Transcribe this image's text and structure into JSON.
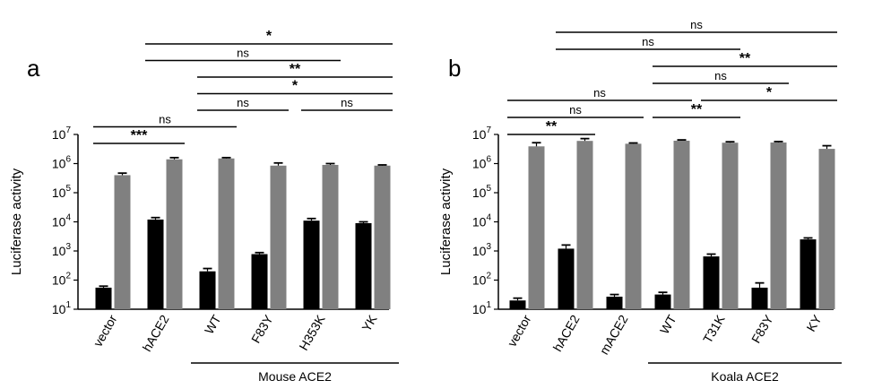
{
  "chart_data": [
    {
      "type": "bar",
      "panel_label": "a",
      "ylabel": "Luciferase activity",
      "yscale": "log",
      "ylim": [
        10,
        10000000
      ],
      "yticks": [
        {
          "base": "10",
          "exp": "1"
        },
        {
          "base": "10",
          "exp": "2"
        },
        {
          "base": "10",
          "exp": "3"
        },
        {
          "base": "10",
          "exp": "4"
        },
        {
          "base": "10",
          "exp": "5"
        },
        {
          "base": "10",
          "exp": "6"
        },
        {
          "base": "10",
          "exp": "7"
        }
      ],
      "categories": [
        "vector",
        "hACE2",
        "WT",
        "F83Y",
        "H353K",
        "YK"
      ],
      "series": [
        {
          "color": "#000000",
          "values": [
            55,
            12000,
            200,
            780,
            11000,
            9000
          ],
          "errors_up": [
            62,
            14000,
            250,
            880,
            13000,
            10000
          ]
        },
        {
          "color": "#808080",
          "values": [
            400000,
            1400000,
            1500000,
            850000,
            900000,
            850000
          ],
          "errors_up": [
            470000,
            1600000,
            1600000,
            1050000,
            1000000,
            900000
          ]
        }
      ],
      "group_label": "Mouse ACE2",
      "group_range": [
        2,
        5
      ],
      "comparisons": [
        {
          "from": 0,
          "to": 1,
          "label": "***",
          "level": 0
        },
        {
          "from": 0,
          "to": 2,
          "label": "ns",
          "level": 1
        },
        {
          "from": 2,
          "to": 3,
          "label": "ns",
          "level": 2
        },
        {
          "from": 4,
          "to": 5,
          "label": "ns",
          "level": 2
        },
        {
          "from": 2,
          "to": 5,
          "label": "*",
          "level": 3
        },
        {
          "from": 2,
          "to": 5,
          "label": "**",
          "level": 4
        },
        {
          "from": 1,
          "to": 4,
          "label": "ns",
          "level": 5
        },
        {
          "from": 1,
          "to": 5,
          "label": "*",
          "level": 6
        }
      ]
    },
    {
      "type": "bar",
      "panel_label": "b",
      "ylabel": "Luciferase activity",
      "yscale": "log",
      "ylim": [
        10,
        10000000
      ],
      "yticks": [
        {
          "base": "10",
          "exp": "1"
        },
        {
          "base": "10",
          "exp": "2"
        },
        {
          "base": "10",
          "exp": "3"
        },
        {
          "base": "10",
          "exp": "4"
        },
        {
          "base": "10",
          "exp": "5"
        },
        {
          "base": "10",
          "exp": "6"
        },
        {
          "base": "10",
          "exp": "7"
        }
      ],
      "categories": [
        "vector",
        "hACE2",
        "mACE2",
        "WT",
        "T31K",
        "F83Y",
        "KY"
      ],
      "series": [
        {
          "color": "#000000",
          "values": [
            20,
            1200,
            27,
            32,
            650,
            55,
            2500
          ],
          "errors_up": [
            24,
            1600,
            32,
            38,
            780,
            80,
            2800
          ]
        },
        {
          "color": "#808080",
          "values": [
            3900000,
            6000000,
            4800000,
            6100000,
            5200000,
            5300000,
            3200000
          ],
          "errors_up": [
            5200000,
            7200000,
            5100000,
            6500000,
            5600000,
            5700000,
            4100000
          ]
        }
      ],
      "group_label": "Koala ACE2",
      "group_range": [
        3,
        6
      ],
      "comparisons": [
        {
          "from": 0,
          "to": 1,
          "label": "**",
          "level": 0
        },
        {
          "from": 0,
          "to": 2,
          "label": "ns",
          "level": 1
        },
        {
          "from": 3,
          "to": 4,
          "label": "**",
          "level": 1
        },
        {
          "from": 0,
          "to": 3,
          "label": "ns",
          "level": 2
        },
        {
          "from": 4,
          "to": 6,
          "label": "*",
          "level": 2
        },
        {
          "from": 3,
          "to": 5,
          "label": "ns",
          "level": 3
        },
        {
          "from": 3,
          "to": 6,
          "label": "**",
          "level": 4
        },
        {
          "from": 1,
          "to": 4,
          "label": "ns",
          "level": 5
        },
        {
          "from": 1,
          "to": 6,
          "label": "ns",
          "level": 6
        }
      ]
    }
  ]
}
